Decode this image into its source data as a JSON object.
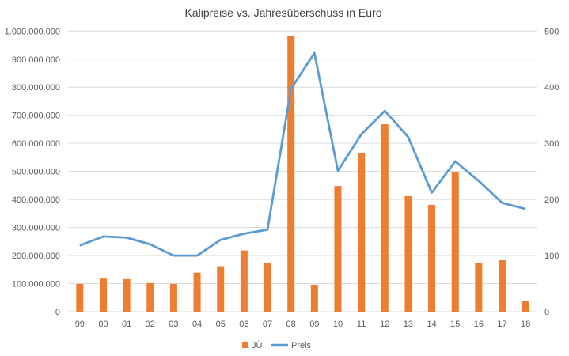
{
  "chart_data": {
    "type": "bar+line",
    "title": "Kalipreise vs. Jahresüberschuss in Euro",
    "categories": [
      "99",
      "00",
      "01",
      "02",
      "03",
      "04",
      "05",
      "06",
      "07",
      "08",
      "09",
      "10",
      "11",
      "12",
      "13",
      "14",
      "15",
      "16",
      "17",
      "18"
    ],
    "series": [
      {
        "name": "JÜ",
        "type": "bar",
        "axis": "left",
        "color": "#ED7D31",
        "values": [
          99000000,
          118000000,
          116000000,
          102000000,
          99000000,
          139000000,
          162000000,
          218000000,
          175000000,
          982000000,
          96000000,
          448000000,
          564000000,
          668000000,
          412000000,
          381000000,
          496000000,
          172000000,
          183000000,
          39000000
        ]
      },
      {
        "name": "Preis",
        "type": "line",
        "axis": "right",
        "color": "#5B9BD5",
        "values": [
          118,
          134,
          132,
          120,
          100,
          100,
          128,
          139,
          146,
          397,
          461,
          251,
          316,
          358,
          311,
          212,
          268,
          233,
          194,
          183
        ]
      }
    ],
    "y_left": {
      "range": [
        0,
        1000000000
      ],
      "ticks": [
        "0",
        "100.000.000",
        "200.000.000",
        "300.000.000",
        "400.000.000",
        "500.000.000",
        "600.000.000",
        "700.000.000",
        "800.000.000",
        "900.000.000",
        "1.000.000.000"
      ]
    },
    "y_right": {
      "range": [
        0,
        500
      ],
      "ticks": [
        "0",
        "100",
        "200",
        "300",
        "400",
        "500"
      ]
    },
    "grid": true,
    "legend": "bottom"
  }
}
